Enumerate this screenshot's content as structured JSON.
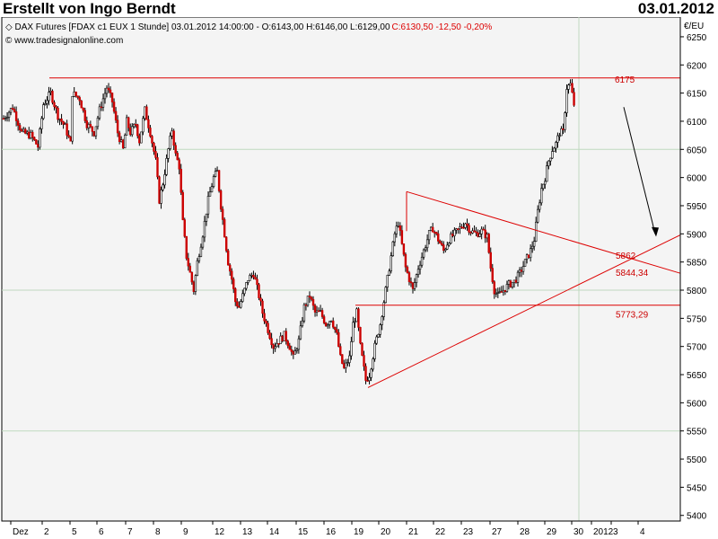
{
  "header": {
    "title": "Erstellt von Ingo Berndt",
    "date": "03.01.2012"
  },
  "chart_info": {
    "instrument_prefix": "DAX Futures [FDAX c1 EUX  1 Stunde] 03.01.2012 14:00:00 - O:6143,00 H:6146,00 L:6129,00",
    "close_text": "C:6130,50 -12,50 -0,20%",
    "copyright": "© www.tradesignalonline.com",
    "currency": "€/EU"
  },
  "colors": {
    "plot_bg": "#f4f4f4",
    "grid": "#bfd9bf",
    "annotation": "#dd0000",
    "candle_up": "#ffffff",
    "candle_down": "#cc0000",
    "wick": "#000000"
  },
  "chart_data": {
    "type": "candlestick",
    "title": "DAX Futures [FDAX c1 EUX 1 Stunde]",
    "y_axis": {
      "label": "€/EU",
      "min": 5390,
      "max": 6285,
      "ticks": [
        6250,
        6200,
        6150,
        6100,
        6050,
        6000,
        5950,
        5900,
        5850,
        5800,
        5750,
        5700,
        5650,
        5600,
        5550,
        5500,
        5450,
        5400
      ],
      "tick_labels": [
        "6250",
        "6200",
        "6150",
        "6100",
        "6050",
        "6000",
        "5950",
        "5900",
        "5850",
        "5800",
        "5750",
        "5700",
        "5650",
        "5600",
        "5550",
        "5500",
        "5450",
        "5400"
      ]
    },
    "x_axis": {
      "labels": [
        "Dez",
        "2",
        "5",
        "6",
        "7",
        "8",
        "9",
        "12",
        "13",
        "14",
        "15",
        "16",
        "19",
        "20",
        "21",
        "22",
        "23",
        "27",
        "28",
        "29",
        "30",
        "2012",
        "3",
        "4"
      ]
    },
    "grid": {
      "horizontal_levels": [
        6050,
        5800,
        5550
      ]
    },
    "path": [
      [
        0,
        6105
      ],
      [
        5,
        6125
      ],
      [
        10,
        6080
      ],
      [
        15,
        6075
      ],
      [
        19,
        6055
      ],
      [
        22,
        6130
      ],
      [
        26,
        6150
      ],
      [
        30,
        6110
      ],
      [
        34,
        6090
      ],
      [
        37,
        6060
      ],
      [
        38,
        6150
      ],
      [
        42,
        6140
      ],
      [
        46,
        6095
      ],
      [
        50,
        6080
      ],
      [
        53,
        6120
      ],
      [
        57,
        6160
      ],
      [
        60,
        6135
      ],
      [
        63,
        6080
      ],
      [
        66,
        6050
      ],
      [
        68,
        6100
      ],
      [
        70,
        6080
      ],
      [
        73,
        6095
      ],
      [
        75,
        6065
      ],
      [
        78,
        6120
      ],
      [
        81,
        6080
      ],
      [
        84,
        6030
      ],
      [
        86,
        5960
      ],
      [
        88,
        5990
      ],
      [
        91,
        6050
      ],
      [
        93,
        6085
      ],
      [
        95,
        6040
      ],
      [
        97,
        6020
      ],
      [
        99,
        5920
      ],
      [
        101,
        5860
      ],
      [
        103,
        5830
      ],
      [
        105,
        5800
      ],
      [
        107,
        5850
      ],
      [
        110,
        5900
      ],
      [
        113,
        5960
      ],
      [
        116,
        6000
      ],
      [
        118,
        6010
      ],
      [
        120,
        5950
      ],
      [
        122,
        5900
      ],
      [
        124,
        5850
      ],
      [
        126,
        5820
      ],
      [
        128,
        5780
      ],
      [
        130,
        5770
      ],
      [
        132,
        5790
      ],
      [
        135,
        5820
      ],
      [
        138,
        5830
      ],
      [
        141,
        5790
      ],
      [
        143,
        5760
      ],
      [
        145,
        5740
      ],
      [
        147,
        5720
      ],
      [
        149,
        5700
      ],
      [
        152,
        5710
      ],
      [
        155,
        5720
      ],
      [
        158,
        5700
      ],
      [
        160,
        5680
      ],
      [
        163,
        5710
      ],
      [
        166,
        5770
      ],
      [
        169,
        5790
      ],
      [
        172,
        5760
      ],
      [
        175,
        5760
      ],
      [
        178,
        5740
      ],
      [
        181,
        5750
      ],
      [
        184,
        5720
      ],
      [
        186,
        5680
      ],
      [
        188,
        5660
      ],
      [
        191,
        5680
      ],
      [
        193,
        5740
      ],
      [
        195,
        5760
      ],
      [
        197,
        5700
      ],
      [
        199,
        5660
      ],
      [
        200,
        5640
      ],
      [
        202,
        5650
      ],
      [
        205,
        5700
      ],
      [
        208,
        5740
      ],
      [
        211,
        5800
      ],
      [
        214,
        5860
      ],
      [
        216,
        5900
      ],
      [
        218,
        5920
      ],
      [
        220,
        5880
      ],
      [
        222,
        5840
      ],
      [
        224,
        5820
      ],
      [
        226,
        5800
      ],
      [
        229,
        5840
      ],
      [
        231,
        5860
      ],
      [
        233,
        5880
      ],
      [
        235,
        5900
      ],
      [
        237,
        5910
      ],
      [
        240,
        5890
      ],
      [
        243,
        5870
      ],
      [
        246,
        5890
      ],
      [
        249,
        5900
      ],
      [
        252,
        5910
      ],
      [
        255,
        5920
      ],
      [
        258,
        5905
      ],
      [
        261,
        5900
      ],
      [
        264,
        5905
      ],
      [
        267,
        5895
      ],
      [
        269,
        5840
      ],
      [
        271,
        5800
      ],
      [
        273,
        5790
      ],
      [
        276,
        5800
      ],
      [
        279,
        5810
      ],
      [
        282,
        5815
      ],
      [
        285,
        5830
      ],
      [
        288,
        5850
      ],
      [
        291,
        5870
      ],
      [
        293,
        5890
      ],
      [
        295,
        5940
      ],
      [
        297,
        5980
      ],
      [
        299,
        6000
      ],
      [
        301,
        6030
      ],
      [
        303,
        6050
      ],
      [
        305,
        6060
      ],
      [
        307,
        6080
      ],
      [
        309,
        6080
      ],
      [
        311,
        6160
      ],
      [
        313,
        6165
      ],
      [
        315,
        6130
      ]
    ],
    "x_path_range": [
      0,
      340
    ],
    "annotations": [
      {
        "label": "6175",
        "value": 6175
      },
      {
        "label": "5862",
        "value": 5862
      },
      {
        "label": "5844,34",
        "value": 5844.34
      },
      {
        "label": "5773,29",
        "value": 5773.29
      }
    ]
  }
}
